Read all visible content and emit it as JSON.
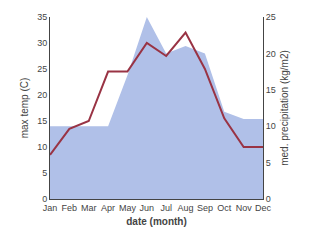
{
  "chart_data": {
    "type": "line",
    "xlabel": "date (month)",
    "ylabel": "max temp (C)",
    "y2label": "med. precipitation (kg/m2)",
    "categories": [
      "Jan",
      "Feb",
      "Mar",
      "Apr",
      "May",
      "Jun",
      "Jul",
      "Aug",
      "Sep",
      "Oct",
      "Nov",
      "Dec"
    ],
    "series": [
      {
        "type": "area",
        "axis": "y2",
        "color": "#b0c0e8",
        "values": [
          10,
          10,
          10,
          10,
          17,
          25,
          20,
          21,
          20,
          12,
          11,
          11
        ]
      },
      {
        "type": "line",
        "color": "#993344",
        "values": [
          8.5,
          13.5,
          15.0,
          24.5,
          24.5,
          30.0,
          27.5,
          32.0,
          25.0,
          15.5,
          10.0,
          10.0
        ]
      }
    ],
    "ylim": [
      0,
      35
    ],
    "yticks": [
      0,
      5,
      10,
      15,
      20,
      25,
      30,
      35
    ],
    "y2lim": [
      0,
      25
    ],
    "y2ticks": [
      0,
      5,
      10,
      15,
      20,
      25
    ],
    "grid": false
  }
}
